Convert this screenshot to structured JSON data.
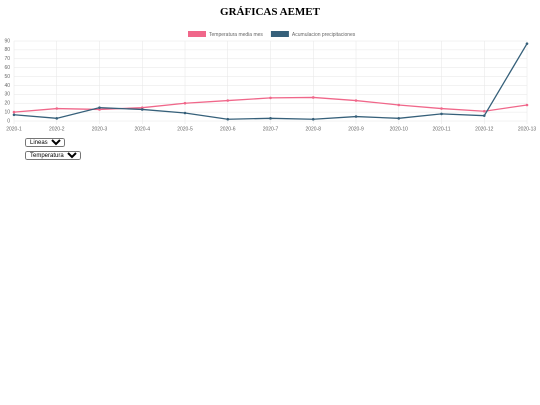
{
  "header": {
    "title": "GRÁFICAS AEMET"
  },
  "chart_data": {
    "type": "line",
    "categories": [
      "2020-1",
      "2020-2",
      "2020-3",
      "2020-4",
      "2020-5",
      "2020-6",
      "2020-7",
      "2020-8",
      "2020-9",
      "2020-10",
      "2020-11",
      "2020-12",
      "2020-13"
    ],
    "series": [
      {
        "name": "Temperatura media mes",
        "color": "#f0678a",
        "values": [
          10,
          14,
          13,
          15,
          20,
          23,
          26,
          26.5,
          23,
          18,
          14,
          11,
          18
        ]
      },
      {
        "name": "Acumulacion precipitaciones",
        "color": "#36607a",
        "values": [
          7,
          3,
          15,
          13,
          9,
          2,
          3,
          2,
          5,
          3,
          8,
          6,
          87
        ]
      }
    ],
    "ylim": [
      0,
      90
    ],
    "yticks": [
      0,
      10,
      20,
      30,
      40,
      50,
      60,
      70,
      80,
      90
    ],
    "grid": true
  },
  "controls": {
    "chart_type": "Lineas",
    "variable": "Temperatura"
  }
}
